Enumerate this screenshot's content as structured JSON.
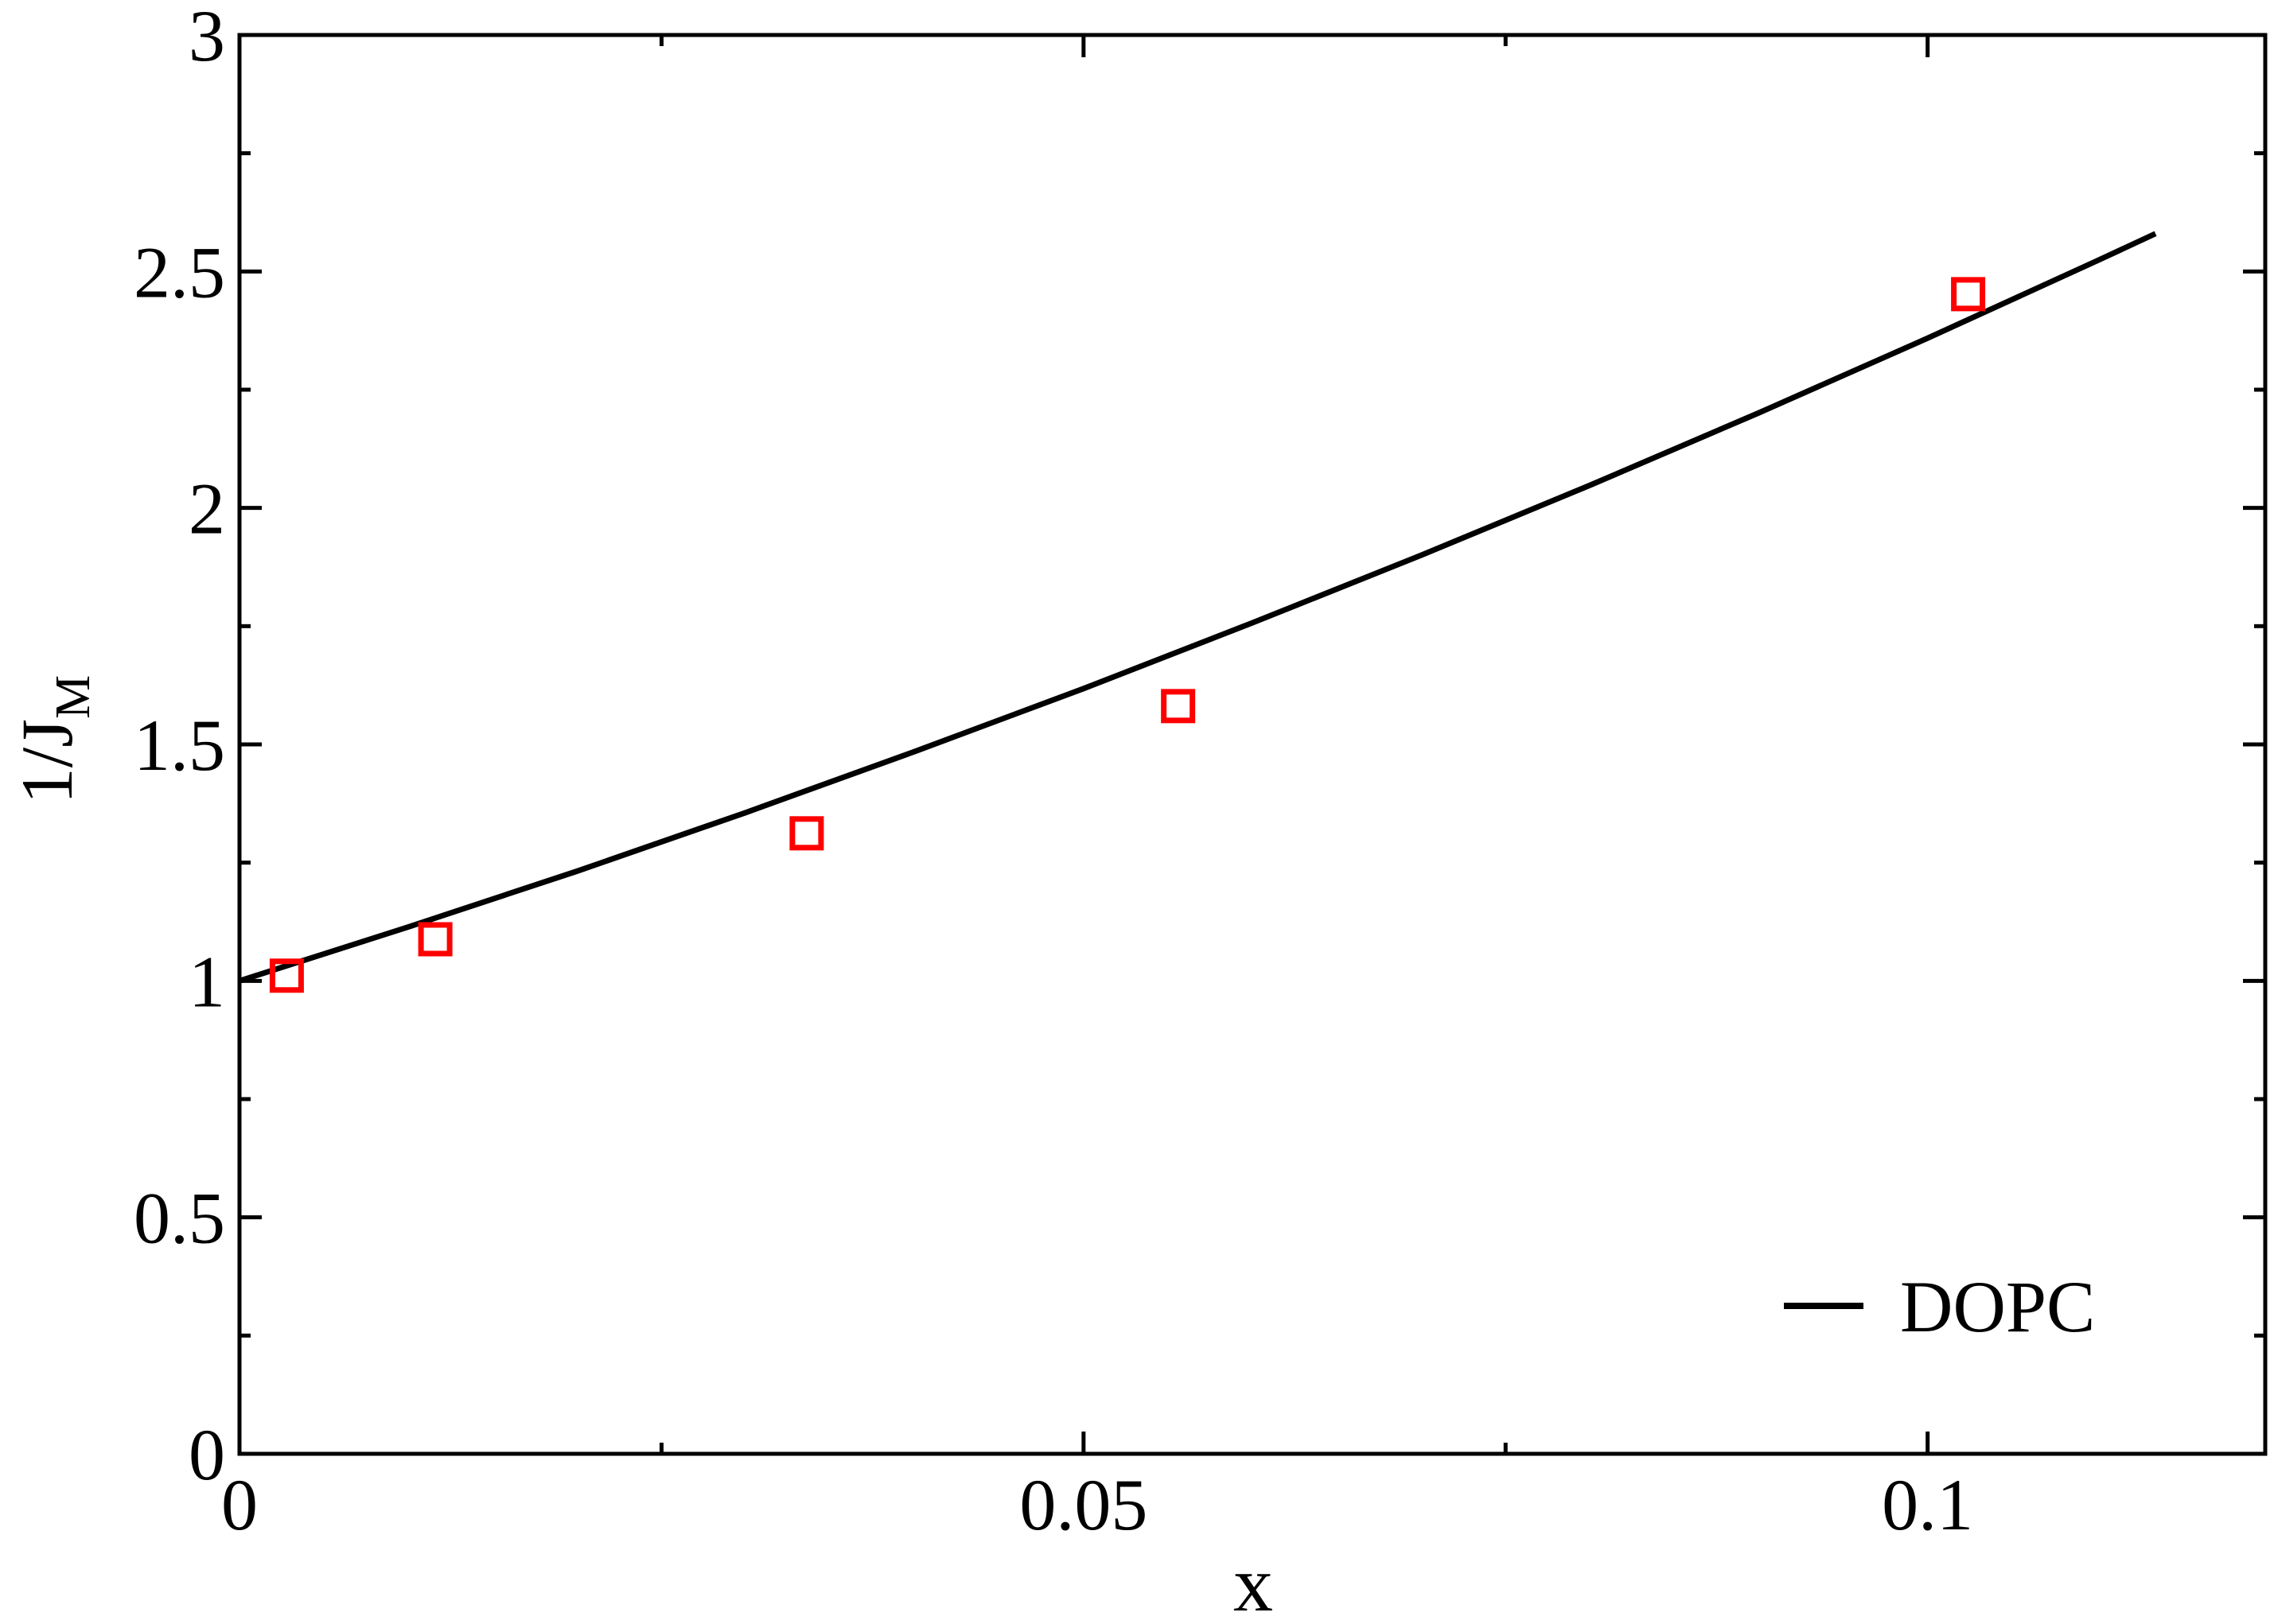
{
  "chart_data": {
    "type": "scatter",
    "x_label": "x",
    "y_label": "1/J",
    "y_label_sub": "M",
    "xlim": [
      0,
      0.12
    ],
    "xticks": [
      0,
      0.05,
      0.1
    ],
    "ylim": [
      0,
      3
    ],
    "yticks": [
      0,
      0.5,
      1,
      1.5,
      2,
      2.5,
      3
    ],
    "legend": "lower right",
    "series": [
      {
        "name": "DOPC",
        "type": "line",
        "color": "#000000",
        "x": [
          0,
          0.01,
          0.02,
          0.03,
          0.04,
          0.05,
          0.06,
          0.07,
          0.08,
          0.09,
          0.1,
          0.11,
          0.1135
        ],
        "values": [
          1,
          1.114,
          1.232,
          1.356,
          1.485,
          1.618,
          1.757,
          1.9,
          2.048,
          2.201,
          2.359,
          2.522,
          2.58
        ]
      },
      {
        "type": "scatter",
        "color": "#ff0000",
        "x": [
          0.0028,
          0.0116,
          0.0336,
          0.0556,
          0.1024
        ],
        "values": [
          1.011,
          1.088,
          1.312,
          1.581,
          2.452
        ]
      }
    ]
  }
}
